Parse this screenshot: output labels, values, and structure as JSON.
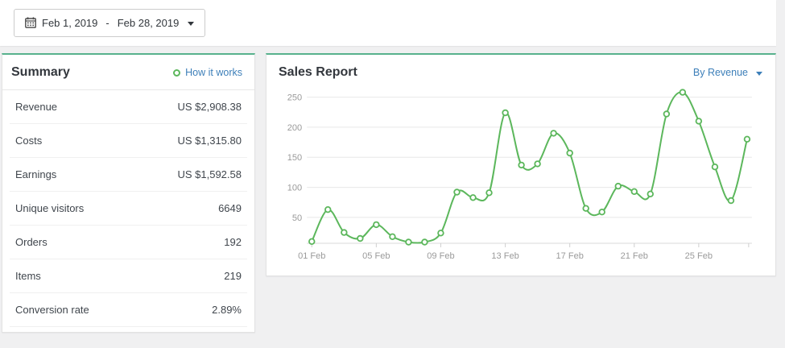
{
  "toolbar": {
    "date_start": "Feb 1, 2019",
    "date_separator": "-",
    "date_end": "Feb 28, 2019"
  },
  "summary": {
    "title": "Summary",
    "how_it_works_label": "How it works",
    "rows": [
      {
        "label": "Revenue",
        "value": "US $2,908.38"
      },
      {
        "label": "Costs",
        "value": "US $1,315.80"
      },
      {
        "label": "Earnings",
        "value": "US $1,592.58"
      },
      {
        "label": "Unique visitors",
        "value": "6649"
      },
      {
        "label": "Orders",
        "value": "192"
      },
      {
        "label": "Items",
        "value": "219"
      },
      {
        "label": "Conversion rate",
        "value": "2.89%"
      }
    ]
  },
  "sales_report": {
    "title": "Sales Report",
    "filter_label": "By Revenue"
  },
  "chart_data": {
    "type": "line",
    "title": "Sales Report",
    "x": [
      "01 Feb",
      "02 Feb",
      "03 Feb",
      "04 Feb",
      "05 Feb",
      "06 Feb",
      "07 Feb",
      "08 Feb",
      "09 Feb",
      "10 Feb",
      "11 Feb",
      "12 Feb",
      "13 Feb",
      "14 Feb",
      "15 Feb",
      "16 Feb",
      "17 Feb",
      "18 Feb",
      "19 Feb",
      "20 Feb",
      "21 Feb",
      "22 Feb",
      "23 Feb",
      "24 Feb",
      "25 Feb",
      "26 Feb",
      "27 Feb",
      "28 Feb"
    ],
    "values": [
      10,
      63,
      25,
      15,
      38,
      18,
      9,
      9,
      24,
      92,
      83,
      91,
      224,
      137,
      139,
      190,
      157,
      65,
      59,
      102,
      93,
      89,
      222,
      258,
      210,
      134,
      78,
      180
    ],
    "x_tick_labels": [
      "01 Feb",
      "05 Feb",
      "09 Feb",
      "13 Feb",
      "17 Feb",
      "21 Feb",
      "25 Feb"
    ],
    "x_tick_every": 4,
    "y_ticks": [
      50,
      100,
      150,
      200,
      250
    ],
    "ylim": [
      0,
      265
    ],
    "grid": true,
    "legend": "none",
    "line_color": "#5cb75c",
    "marker_fill": "#ffffff"
  },
  "icons": {
    "calendar": "calendar-icon",
    "chevron": "chevron-down-icon",
    "target": "target-icon"
  },
  "colors": {
    "panel_accent_top": "#58b28d",
    "link_blue": "#3d7fb9",
    "chart_line_green": "#5cb75c",
    "page_background": "#f0f0f1",
    "grid_line": "#e8e8e8"
  }
}
